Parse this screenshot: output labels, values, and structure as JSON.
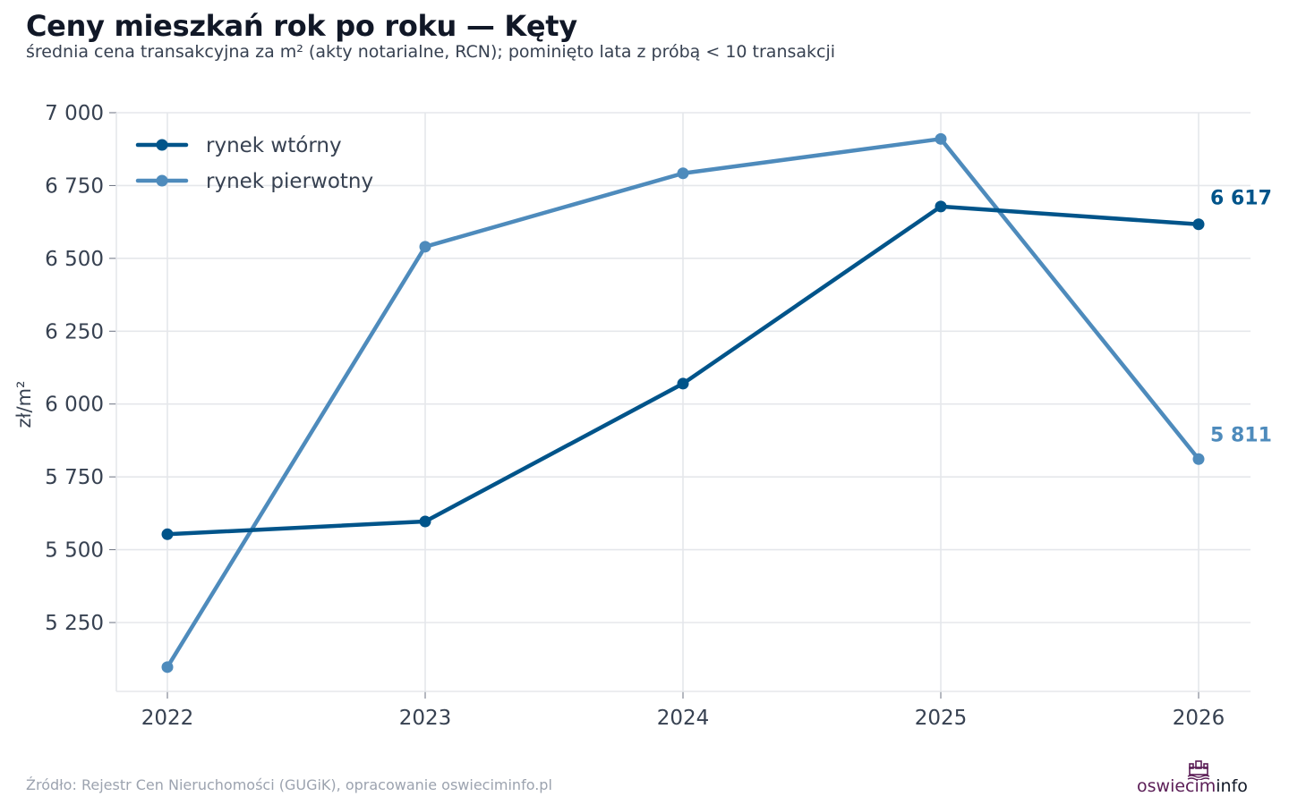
{
  "title": "Ceny mieszkań rok po roku — Kęty",
  "subtitle": "średnia cena transakcyjna za m² (akty notarialne, RCN); pominięto lata z próbą < 10 transakcji",
  "source": "Źródło: Rejestr Cen Nieruchomości (GUGiK), opracowanie oswieciminfo.pl",
  "logo": {
    "part1": "oswiecim",
    "part2": "info",
    "icon": "castle-icon"
  },
  "colors": {
    "series_wtorny": "#00548a",
    "series_pierwotny": "#4e8bbc",
    "grid": "#e5e7eb",
    "axis_text": "#374151",
    "logo_accent": "#5b1e57"
  },
  "chart_data": {
    "type": "line",
    "title": "Ceny mieszkań rok po roku — Kęty",
    "subtitle": "średnia cena transakcyjna za m² (akty notarialne, RCN); pominięto lata z próbą < 10 transakcji",
    "xlabel": "",
    "ylabel": "zł/m²",
    "x": [
      "2022",
      "2023",
      "2024",
      "2025",
      "2026"
    ],
    "ylim": [
      5080,
      7000
    ],
    "yticks": [
      5250,
      5500,
      5750,
      6000,
      6250,
      6500,
      6750,
      7000
    ],
    "ytick_labels": [
      "5 250",
      "5 500",
      "5 750",
      "6 000",
      "6 250",
      "6 500",
      "6 750",
      "7 000"
    ],
    "grid": true,
    "legend_position": "top-left",
    "series": [
      {
        "name": "rynek wtórny",
        "color": "#00548a",
        "values": [
          5553,
          5597,
          6070,
          6678,
          6617
        ],
        "end_label": "6 617"
      },
      {
        "name": "rynek pierwotny",
        "color": "#4e8bbc",
        "values": [
          5097,
          6540,
          6792,
          6910,
          5811
        ],
        "end_label": "5 811"
      }
    ]
  }
}
